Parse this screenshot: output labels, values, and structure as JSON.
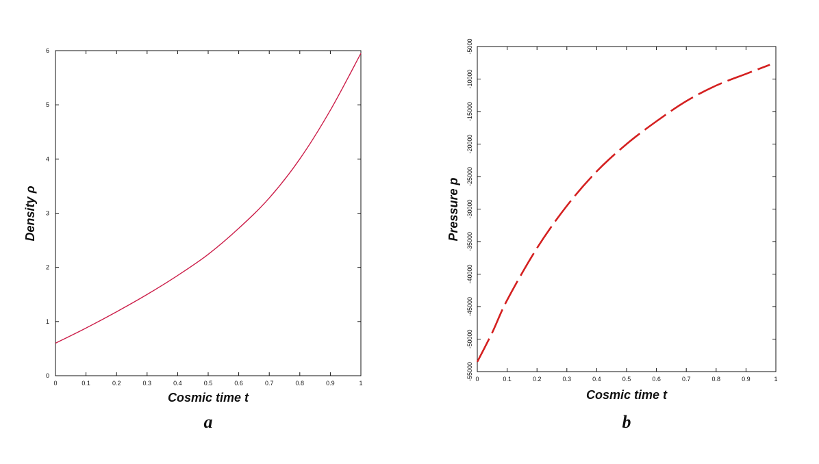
{
  "chart_data": [
    {
      "type": "line",
      "panel_label": "a",
      "xlabel": "Cosmic time t",
      "ylabel": "Density ρ",
      "xlim": [
        0,
        1
      ],
      "ylim": [
        0,
        6
      ],
      "x_ticks": [
        "0",
        "0.1",
        "0.2",
        "0.3",
        "0.4",
        "0.5",
        "0.6",
        "0.7",
        "0.8",
        "0.9",
        "1"
      ],
      "y_ticks": [
        "0",
        "1",
        "2",
        "3",
        "4",
        "5",
        "6"
      ],
      "grid": false,
      "series": [
        {
          "color": "#cc1f4a",
          "style": "solid",
          "x": [
            0,
            0.1,
            0.2,
            0.3,
            0.4,
            0.5,
            0.6,
            0.7,
            0.8,
            0.9,
            1.0
          ],
          "y": [
            0.6,
            0.88,
            1.18,
            1.5,
            1.85,
            2.24,
            2.72,
            3.28,
            4.0,
            4.9,
            5.95
          ]
        }
      ]
    },
    {
      "type": "line",
      "panel_label": "b",
      "xlabel": "Cosmic time t",
      "ylabel": "Pressure p",
      "xlim": [
        0,
        1
      ],
      "ylim": [
        -55000,
        -5000
      ],
      "x_ticks": [
        "0",
        "0.1",
        "0.2",
        "0.3",
        "0.4",
        "0.5",
        "0.6",
        "0.7",
        "0.8",
        "0.9",
        "1"
      ],
      "y_ticks": [
        "-55000",
        "-50000",
        "-45000",
        "-40000",
        "-35000",
        "-30000",
        "-25000",
        "-20000",
        "-15000",
        "-10000",
        "-5000"
      ],
      "grid": false,
      "series": [
        {
          "color": "#d42020",
          "style": "dashed",
          "x": [
            0,
            0.05,
            0.1,
            0.2,
            0.3,
            0.4,
            0.5,
            0.6,
            0.7,
            0.8,
            0.9,
            0.98
          ],
          "y": [
            -53500,
            -49000,
            -44000,
            -36000,
            -29500,
            -24200,
            -20000,
            -16500,
            -13400,
            -11000,
            -9200,
            -7800
          ]
        }
      ]
    }
  ]
}
